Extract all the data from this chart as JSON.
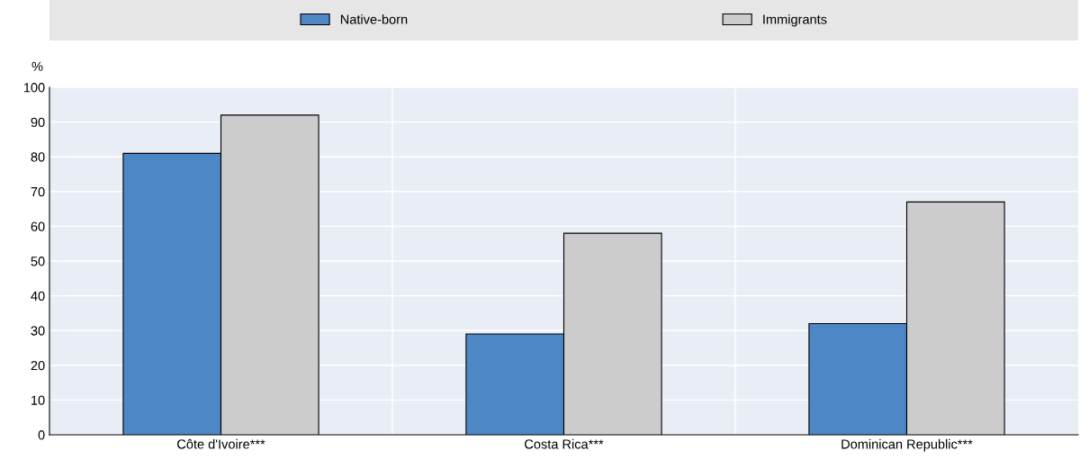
{
  "chart_data": {
    "type": "bar",
    "ylabel": "%",
    "categories": [
      "Côte d'Ivoire***",
      "Costa Rica***",
      "Dominican Republic***"
    ],
    "series": [
      {
        "name": "Native-born",
        "color": "#4e87c6",
        "values": [
          81,
          29,
          32
        ]
      },
      {
        "name": "Immigrants",
        "color": "#cccccc",
        "values": [
          92,
          58,
          67
        ]
      }
    ],
    "ylim": [
      0,
      100
    ],
    "yticks": [
      0,
      10,
      20,
      30,
      40,
      50,
      60,
      70,
      80,
      90,
      100
    ],
    "grid": "y",
    "legend": "top"
  }
}
